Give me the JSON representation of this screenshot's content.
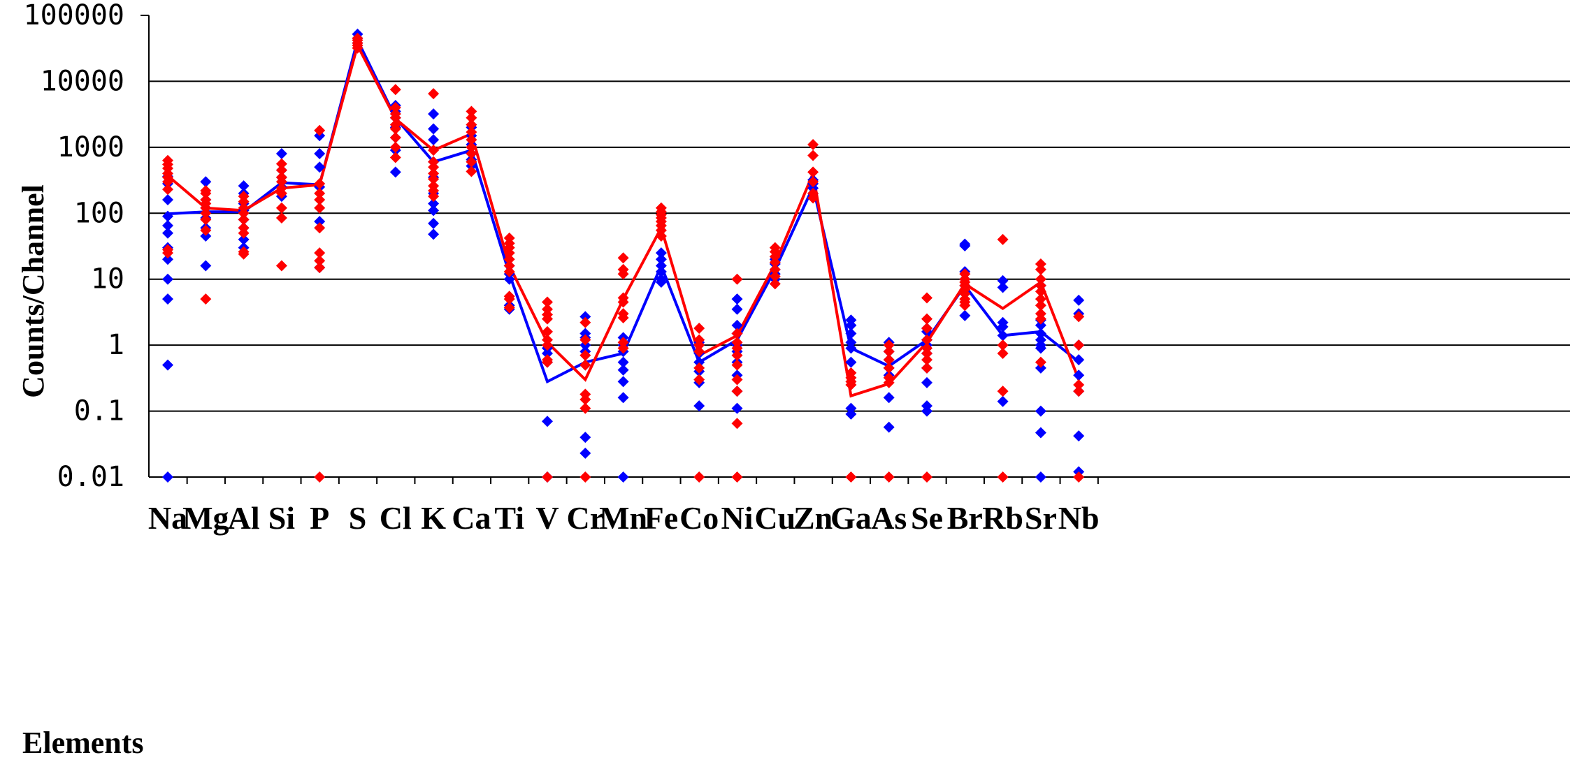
{
  "chart_data": {
    "type": "line",
    "title": "",
    "xlabel": "Elements",
    "ylabel": "Counts/Channel",
    "yscale": "log",
    "ylim": [
      0.01,
      100000
    ],
    "grid": true,
    "legend": "none",
    "y_ticks": [
      "100000",
      "10000",
      "1000",
      "100",
      "10",
      "1",
      "0.1",
      "0.01"
    ],
    "categories": [
      "Na",
      "Mg",
      "Al",
      "Si",
      "P",
      "S",
      "Cl",
      "K",
      "Ca",
      "Ti",
      "V",
      "Cr",
      "Mn",
      "Fe",
      "Co",
      "Ni",
      "Cu",
      "Zn",
      "Ga",
      "As",
      "Se",
      "Br",
      "Rb",
      "Sr",
      "Nb"
    ],
    "colors": {
      "blue": "#0000ff",
      "red": "#ff0000"
    },
    "series": [
      {
        "color": "#0000ff",
        "values": [
          98,
          105,
          105,
          290,
          270,
          42000,
          2800,
          600,
          900,
          12,
          0.28,
          0.55,
          0.75,
          16,
          0.55,
          1.2,
          14,
          250,
          0.9,
          0.48,
          1.2,
          8,
          1.4,
          1.6,
          0.56
        ]
      },
      {
        "color": "#ff0000",
        "values": [
          370,
          120,
          110,
          240,
          270,
          35000,
          2700,
          900,
          1600,
          16,
          1.1,
          0.3,
          5,
          60,
          0.7,
          1.4,
          17,
          400,
          0.17,
          0.26,
          1.1,
          8.5,
          3.6,
          9,
          0.3
        ]
      }
    ],
    "points": [
      {
        "color": "#0000ff",
        "values": [
          [
            0.01,
            0.5,
            5,
            10,
            20,
            30,
            50,
            65,
            90,
            160,
            280,
            360
          ],
          [
            16,
            45,
            60,
            85,
            120,
            160,
            300
          ],
          [
            30,
            40,
            60,
            80,
            110,
            140,
            200,
            260
          ],
          [
            180,
            250,
            350,
            450,
            800
          ],
          [
            15,
            75,
            250,
            500,
            800,
            1500
          ],
          [
            38000,
            45000,
            52000
          ],
          [
            420,
            900,
            1400,
            2000,
            2800,
            3500,
            4300
          ],
          [
            48,
            70,
            110,
            140,
            200,
            350,
            600,
            1300,
            1900,
            3200
          ],
          [
            520,
            650,
            800,
            1100,
            1500,
            2000
          ],
          [
            3.5,
            4,
            10,
            12,
            16
          ],
          [
            0.01,
            0.07,
            0.55,
            0.75,
            0.9
          ],
          [
            0.023,
            0.04,
            0.5,
            0.8,
            1,
            1.3,
            1.5,
            2.7
          ],
          [
            0.01,
            0.16,
            0.28,
            0.42,
            0.55,
            0.8,
            1,
            1.3
          ],
          [
            9,
            10,
            13,
            16,
            20,
            25
          ],
          [
            0.12,
            0.27,
            0.4,
            0.55,
            0.75,
            1.1
          ],
          [
            0.11,
            0.2,
            0.35,
            0.55,
            0.8,
            1,
            1.5,
            2,
            3.5,
            5
          ],
          [
            10,
            12,
            14,
            17,
            20
          ],
          [
            200,
            240,
            280,
            320
          ],
          [
            0.09,
            0.11,
            0.55,
            0.9,
            1.1,
            1.5,
            2,
            2.4
          ],
          [
            0.057,
            0.16,
            0.35,
            0.45,
            0.6,
            0.8,
            1.1
          ],
          [
            0.1,
            0.12,
            0.27,
            0.45,
            0.75,
            1,
            1.2,
            1.6,
            1.8
          ],
          [
            2.8,
            8,
            10,
            13,
            32,
            34
          ],
          [
            0.14,
            1.4,
            1.9,
            2.2,
            7.5,
            9.5
          ],
          [
            0.01,
            0.047,
            0.1,
            0.45,
            0.9,
            1,
            1.2,
            1.5,
            2,
            2.4,
            8
          ],
          [
            0.012,
            0.042,
            0.2,
            0.35,
            0.6,
            1,
            3,
            4.8
          ]
        ]
      },
      {
        "color": "#ff0000",
        "values": [
          [
            25,
            28,
            230,
            300,
            350,
            400,
            480,
            550,
            630
          ],
          [
            5,
            55,
            80,
            100,
            120,
            140,
            160,
            200,
            220
          ],
          [
            24,
            26,
            50,
            60,
            80,
            100,
            120,
            150,
            180
          ],
          [
            16,
            85,
            120,
            200,
            240,
            300,
            350,
            450,
            560
          ],
          [
            0.01,
            15,
            19,
            25,
            60,
            120,
            160,
            200,
            280,
            1800
          ],
          [
            32000,
            35000,
            38000,
            42000,
            45000
          ],
          [
            700,
            1000,
            1400,
            1900,
            2200,
            2800,
            3200,
            4000,
            7500
          ],
          [
            180,
            220,
            260,
            330,
            400,
            500,
            600,
            900,
            6500
          ],
          [
            430,
            600,
            800,
            1000,
            1300,
            1700,
            2200,
            2800,
            3500
          ],
          [
            3.7,
            5,
            5.5,
            13,
            16,
            20,
            25,
            30,
            35,
            42
          ],
          [
            0.01,
            0.55,
            0.6,
            1,
            1.2,
            1.6,
            2.5,
            2.9,
            3.5,
            4.5
          ],
          [
            0.01,
            0.11,
            0.15,
            0.18,
            0.5,
            0.7,
            1.2,
            2.2
          ],
          [
            0.9,
            1.1,
            2.6,
            3,
            4.5,
            5.2,
            12,
            14,
            21
          ],
          [
            45,
            55,
            65,
            75,
            85,
            95,
            105,
            120
          ],
          [
            0.01,
            0.3,
            0.45,
            0.8,
            1,
            1.2,
            1.8
          ],
          [
            0.01,
            0.065,
            0.2,
            0.3,
            0.5,
            0.7,
            0.9,
            1.1,
            1.5,
            10
          ],
          [
            8.5,
            11,
            14,
            18,
            22,
            26,
            30
          ],
          [
            170,
            200,
            300,
            420,
            750,
            1100
          ],
          [
            0.01,
            0.25,
            0.28,
            0.32,
            0.38
          ],
          [
            0.01,
            0.27,
            0.32,
            0.45,
            0.6,
            0.8,
            1
          ],
          [
            0.01,
            0.45,
            0.6,
            0.75,
            0.9,
            1.2,
            1.8,
            2.5,
            5.2
          ],
          [
            4,
            4.5,
            5,
            6,
            7,
            8,
            9,
            10,
            12
          ],
          [
            0.01,
            0.2,
            0.75,
            1,
            40
          ],
          [
            0.55,
            2.5,
            3,
            4,
            5,
            6.5,
            8,
            10,
            14,
            17
          ],
          [
            0.01,
            0.2,
            0.25,
            1,
            2.7
          ]
        ]
      }
    ]
  }
}
